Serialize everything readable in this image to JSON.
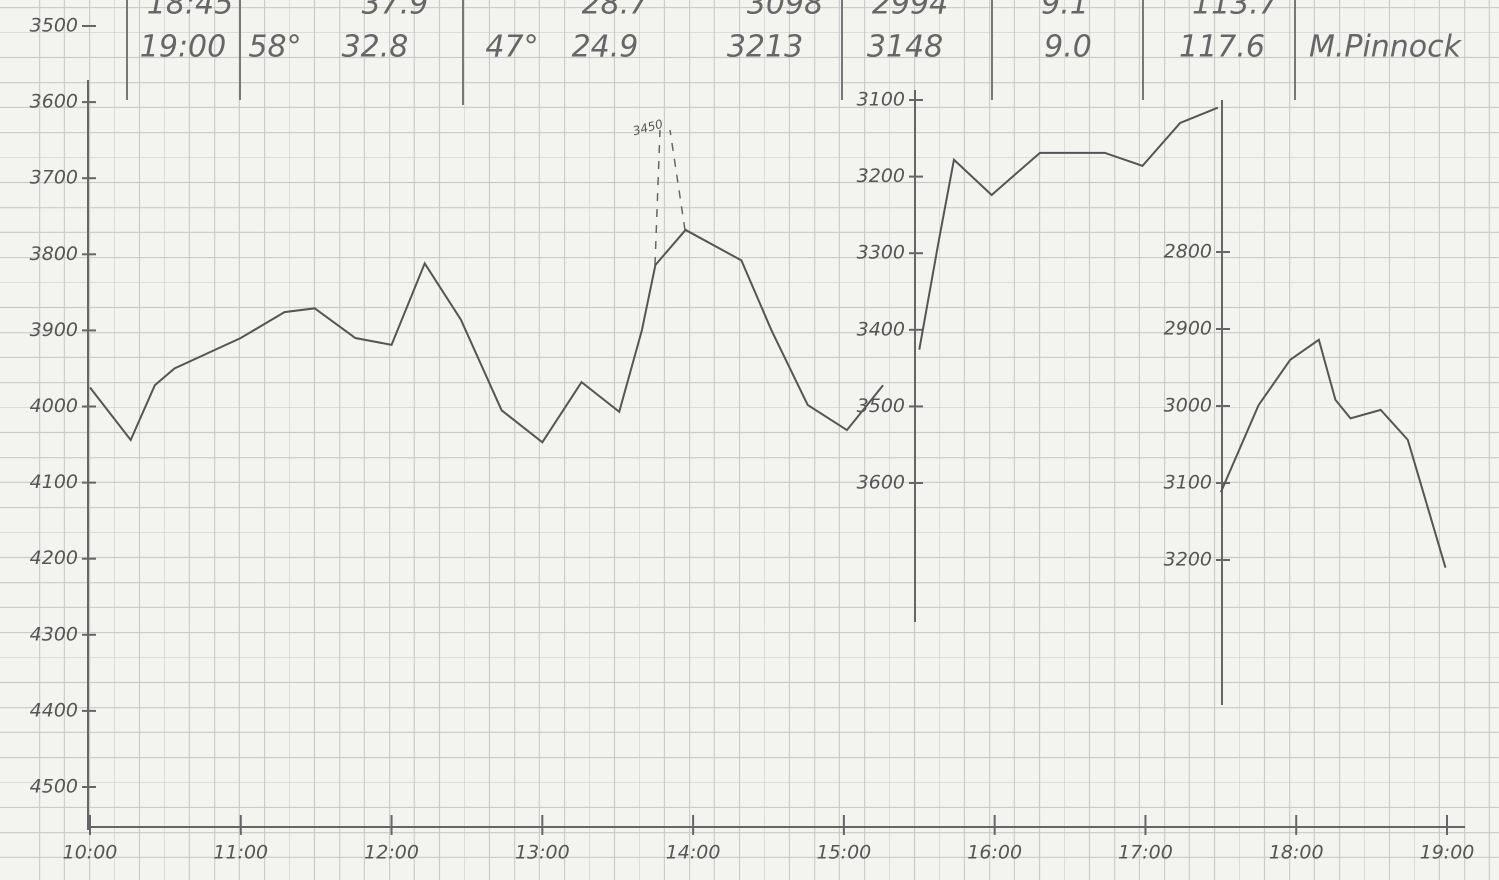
{
  "header": {
    "rows": [
      [
        "18:45",
        "37.9",
        "28.7",
        "3098",
        "2994",
        "9.1",
        "113.7",
        "\""
      ],
      [
        "19:00",
        "58°",
        "32.8",
        "47°",
        "24.9",
        "3213",
        "3148",
        "9.0",
        "117.6",
        "M.Pinnock"
      ]
    ]
  },
  "chart_data": [
    {
      "type": "line",
      "color": "#555555",
      "annotation": "3450",
      "xlim": [
        10,
        19
      ],
      "xticks": [
        {
          "value": 10,
          "label": "10:00"
        },
        {
          "value": 11,
          "label": "11:00"
        },
        {
          "value": 12,
          "label": "12:00"
        },
        {
          "value": 13,
          "label": "13:00"
        },
        {
          "value": 14,
          "label": "14:00"
        },
        {
          "value": 15,
          "label": "15:00"
        },
        {
          "value": 16,
          "label": "16:00"
        },
        {
          "value": 17,
          "label": "17:00"
        },
        {
          "value": 18,
          "label": "18:00"
        },
        {
          "value": 19,
          "label": "19:00"
        }
      ],
      "ylim": [
        4500,
        3500
      ],
      "yticks": [
        3500,
        3600,
        3700,
        3800,
        3900,
        4000,
        4100,
        4200,
        4300,
        4400,
        4500
      ],
      "x": [
        10.0,
        10.27,
        10.43,
        10.56,
        11.0,
        11.29,
        11.49,
        11.76,
        12.0,
        12.22,
        12.46,
        12.73,
        13.0,
        13.26,
        13.51,
        13.66,
        13.75,
        13.95,
        14.32,
        14.52,
        14.76,
        15.02,
        15.26
      ],
      "values": [
        3975,
        4044,
        3972,
        3950,
        3910,
        3876,
        3871,
        3910,
        3919,
        3812,
        3886,
        4005,
        4047,
        3968,
        4007,
        3900,
        3814,
        3768,
        3808,
        3900,
        3998,
        4031,
        3972
      ]
    },
    {
      "type": "line",
      "color": "#555555",
      "xlim": [
        10,
        19
      ],
      "ylim": [
        3600,
        3100
      ],
      "yticks": [
        3100,
        3200,
        3300,
        3400,
        3500,
        3600
      ],
      "x": [
        15.5,
        15.63,
        15.73,
        15.98,
        16.3,
        16.73,
        16.98,
        17.23,
        17.48
      ],
      "values": [
        3426,
        3283,
        3178,
        3224,
        3169,
        3169,
        3186,
        3130,
        3110
      ]
    },
    {
      "type": "line",
      "color": "#555555",
      "xlim": [
        10,
        19
      ],
      "ylim": [
        3200,
        2800
      ],
      "yticks": [
        2800,
        2900,
        3000,
        3100,
        3200
      ],
      "x": [
        17.5,
        17.75,
        17.96,
        18.15,
        18.26,
        18.36,
        18.56,
        18.74,
        18.99
      ],
      "values": [
        3112,
        2999,
        2940,
        2914,
        2992,
        3016,
        3005,
        3044,
        3210
      ]
    }
  ]
}
